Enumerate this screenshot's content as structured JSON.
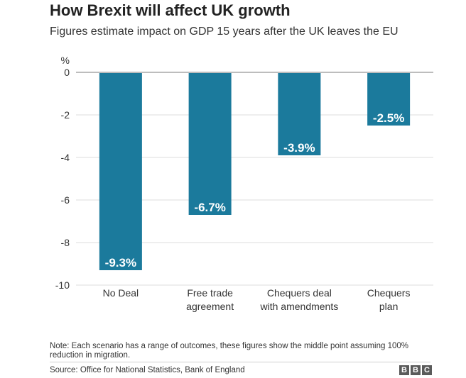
{
  "header": {
    "title": "How Brexit will affect UK growth",
    "subtitle": "Figures estimate impact on GDP 15 years after the UK leaves the EU"
  },
  "footer": {
    "note": "Note: Each scenario has a range of outcomes, these figures show the middle point assuming 100% reduction in migration.",
    "source": "Source: Office for National Statistics, Bank of England",
    "logo_letters": [
      "B",
      "B",
      "C"
    ]
  },
  "colors": {
    "bar": "#1b7a9c",
    "grid": "#dddddd",
    "zero_line": "#bdbdbd",
    "axis_text": "#333333",
    "label_text": "#ffffff"
  },
  "chart_data": {
    "type": "bar",
    "title": "How Brexit will affect UK growth",
    "subtitle": "Figures estimate impact on GDP 15 years after the UK leaves the EU",
    "ylabel": "%",
    "xlabel": "",
    "ylim": [
      -10,
      0
    ],
    "yticks": [
      0,
      -2,
      -4,
      -6,
      -8,
      -10
    ],
    "categories": [
      [
        "No Deal"
      ],
      [
        "Free trade",
        "agreement"
      ],
      [
        "Chequers deal",
        "with amendments"
      ],
      [
        "Chequers",
        "plan"
      ]
    ],
    "values": [
      -9.3,
      -6.7,
      -3.9,
      -2.5
    ],
    "data_labels": [
      "-9.3%",
      "-6.7%",
      "-3.9%",
      "-2.5%"
    ],
    "grid": true
  }
}
